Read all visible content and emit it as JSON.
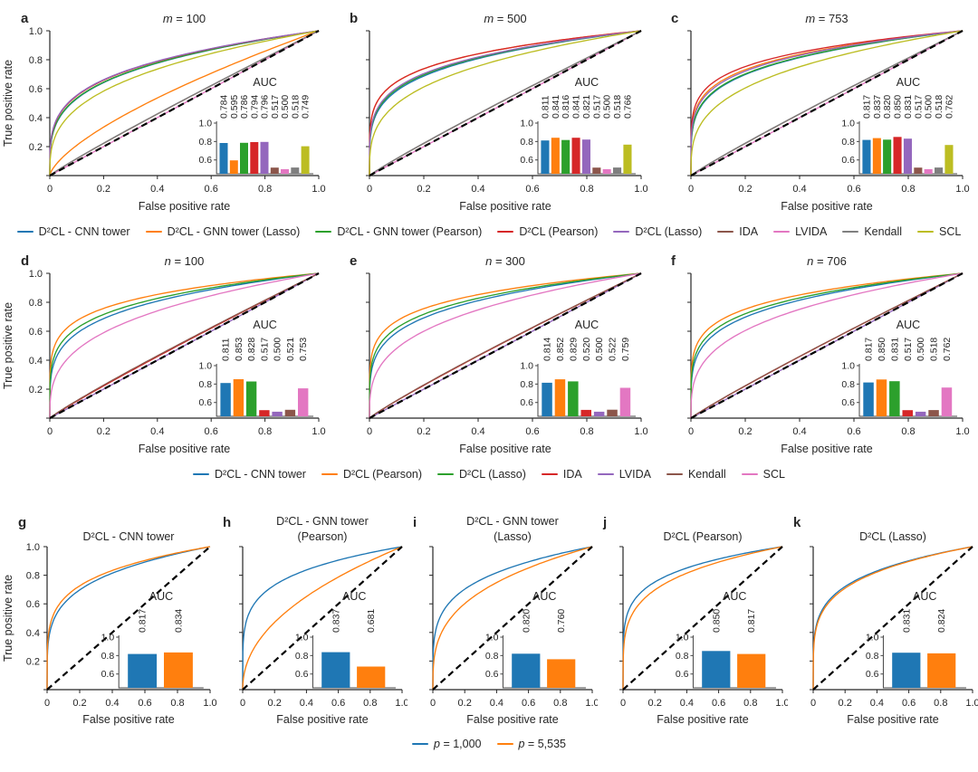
{
  "axes": {
    "xlabel": "False positive rate",
    "ylabel": "True positive rate",
    "tick_labels": [
      "0",
      "0.2",
      "0.4",
      "0.6",
      "0.8",
      "1.0"
    ],
    "tick_values": [
      0,
      0.2,
      0.4,
      0.6,
      0.8,
      1.0
    ],
    "inset_title": "AUC",
    "inset_tick_labels": [
      "0.6",
      "0.8",
      "1.0"
    ],
    "inset_tick_values": [
      0.6,
      0.8,
      1.0
    ],
    "inset_ymin": 0.45,
    "inset_ymax": 1.0
  },
  "chart_data": {
    "type": "roc-curves-with-auc-bar-insets",
    "rows": [
      {
        "methods": [
          {
            "label": "D²CL - CNN tower",
            "color": "#1f77b4"
          },
          {
            "label": "D²CL - GNN tower (Lasso)",
            "color": "#ff7f0e"
          },
          {
            "label": "D²CL - GNN tower (Pearson)",
            "color": "#2ca02c"
          },
          {
            "label": "D²CL (Pearson)",
            "color": "#d62728"
          },
          {
            "label": "D²CL (Lasso)",
            "color": "#9467bd"
          },
          {
            "label": "IDA",
            "color": "#8c564b"
          },
          {
            "label": "LVIDA",
            "color": "#e377c2"
          },
          {
            "label": "Kendall",
            "color": "#7f7f7f"
          },
          {
            "label": "SCL",
            "color": "#bcbd22"
          }
        ],
        "panels": [
          {
            "letter": "a",
            "title_var": "m",
            "title_rest": " = 100",
            "auc": [
              "0.784",
              "0.595",
              "0.786",
              "0.794",
              "0.796",
              "0.517",
              "0.500",
              "0.518",
              "0.749"
            ]
          },
          {
            "letter": "b",
            "title_var": "m",
            "title_rest": " = 500",
            "auc": [
              "0.811",
              "0.841",
              "0.816",
              "0.841",
              "0.821",
              "0.517",
              "0.500",
              "0.518",
              "0.766"
            ]
          },
          {
            "letter": "c",
            "title_var": "m",
            "title_rest": " = 753",
            "auc": [
              "0.817",
              "0.837",
              "0.820",
              "0.850",
              "0.831",
              "0.517",
              "0.500",
              "0.518",
              "0.762"
            ]
          }
        ]
      },
      {
        "methods": [
          {
            "label": "D²CL - CNN tower",
            "color": "#1f77b4"
          },
          {
            "label": "D²CL (Pearson)",
            "color": "#ff7f0e"
          },
          {
            "label": "D²CL (Lasso)",
            "color": "#2ca02c"
          },
          {
            "label": "IDA",
            "color": "#d62728"
          },
          {
            "label": "LVIDA",
            "color": "#9467bd"
          },
          {
            "label": "Kendall",
            "color": "#8c564b"
          },
          {
            "label": "SCL",
            "color": "#e377c2"
          }
        ],
        "panels": [
          {
            "letter": "d",
            "title_var": "n",
            "title_rest": " = 100",
            "auc": [
              "0.811",
              "0.853",
              "0.828",
              "0.517",
              "0.500",
              "0.521",
              "0.753"
            ]
          },
          {
            "letter": "e",
            "title_var": "n",
            "title_rest": " = 300",
            "auc": [
              "0.814",
              "0.852",
              "0.829",
              "0.520",
              "0.500",
              "0.522",
              "0.759"
            ]
          },
          {
            "letter": "f",
            "title_var": "n",
            "title_rest": " = 706",
            "auc": [
              "0.817",
              "0.850",
              "0.831",
              "0.517",
              "0.500",
              "0.518",
              "0.762"
            ]
          }
        ]
      },
      {
        "methods": [
          {
            "var": "p",
            "rest": " = 1,000",
            "color": "#1f77b4"
          },
          {
            "var": "p",
            "rest": " = 5,535",
            "color": "#ff7f0e"
          }
        ],
        "panels": [
          {
            "letter": "g",
            "title": "D²CL - CNN tower",
            "auc": [
              "0.817",
              "0.834"
            ]
          },
          {
            "letter": "h",
            "title": "D²CL - GNN tower",
            "title2": "(Pearson)",
            "auc": [
              "0.837",
              "0.681"
            ]
          },
          {
            "letter": "i",
            "title": "D²CL - GNN tower",
            "title2": "(Lasso)",
            "auc": [
              "0.820",
              "0.760"
            ]
          },
          {
            "letter": "j",
            "title": "D²CL (Pearson)",
            "auc": [
              "0.850",
              "0.817"
            ]
          },
          {
            "letter": "k",
            "title": "D²CL (Lasso)",
            "auc": [
              "0.831",
              "0.824"
            ]
          }
        ]
      }
    ]
  }
}
